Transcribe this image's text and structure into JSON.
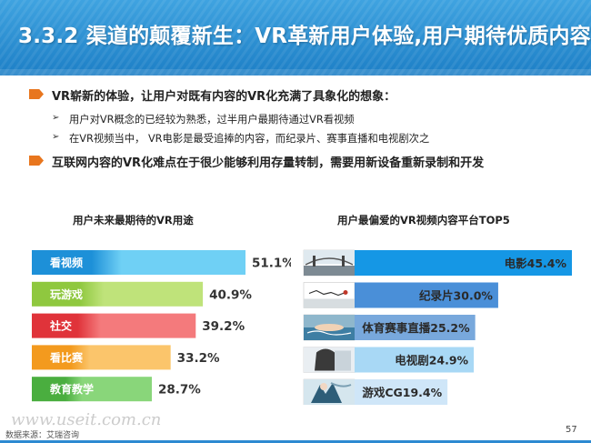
{
  "header": {
    "title": "3.3.2 渠道的颠覆新生：VR革新用户体验,用户期待优质内容"
  },
  "bullets": [
    {
      "text": "VR崭新的体验，让用户对既有内容的VR化充满了具象化的想象：",
      "subs": [
        "用户对VR概念的已经较为熟悉，过半用户最期待通过VR看视频",
        "在VR视频当中， VR电影是最受追捧的内容，而纪录片、赛事直播和电视剧次之"
      ]
    },
    {
      "text": "互联网内容的VR化难点在于很少能够利用存量转制，需要用新设备重新录制和开发",
      "subs": []
    }
  ],
  "sub_marker": "➢",
  "chart_data": [
    {
      "type": "bar",
      "orientation": "horizontal",
      "title": "用户未来最期待的VR用途",
      "categories": [
        "看视频",
        "玩游戏",
        "社交",
        "看比赛",
        "教育教学"
      ],
      "values": [
        51.1,
        40.9,
        39.2,
        33.2,
        28.7
      ],
      "value_labels": [
        "51.1%",
        "40.9%",
        "39.2%",
        "33.2%",
        "28.7%"
      ],
      "unit": "%",
      "colors": [
        "#1d90d8",
        "#8fc83f",
        "#e0333a",
        "#f39a1e",
        "#4aae3f"
      ],
      "highlight_colors": [
        "#6fd0f5",
        "#bfe37a",
        "#f47a7c",
        "#fbc56b",
        "#89d67a"
      ],
      "grid": false,
      "legend": "none"
    },
    {
      "type": "bar",
      "orientation": "horizontal",
      "title": "用户最偏爱的VR视频内容平台TOP5",
      "categories": [
        "电影",
        "纪录片",
        "体育赛事直播",
        "电视剧",
        "游戏CG"
      ],
      "values": [
        45.4,
        30.0,
        25.2,
        24.9,
        19.4
      ],
      "value_labels": [
        "电影45.4%",
        "纪录片30.0%",
        "体育赛事直播25.2%",
        "电视剧24.9%",
        "游戏CG19.4%"
      ],
      "unit": "%",
      "colors": [
        "#1597e5",
        "#4a8fd8",
        "#78a8dc",
        "#a8d8f5",
        "#cfe6f8"
      ],
      "thumbnails": [
        "film-still-bridge",
        "documentary-calligraphy-poster",
        "swimming-race-photo",
        "tv-drama-actress-photo",
        "game-cg-character-art"
      ],
      "grid": false,
      "legend": "none"
    }
  ],
  "footer": {
    "source": "数据来源：艾瑞咨询",
    "watermark": "www.useit.com.cn",
    "page_number": "57"
  }
}
